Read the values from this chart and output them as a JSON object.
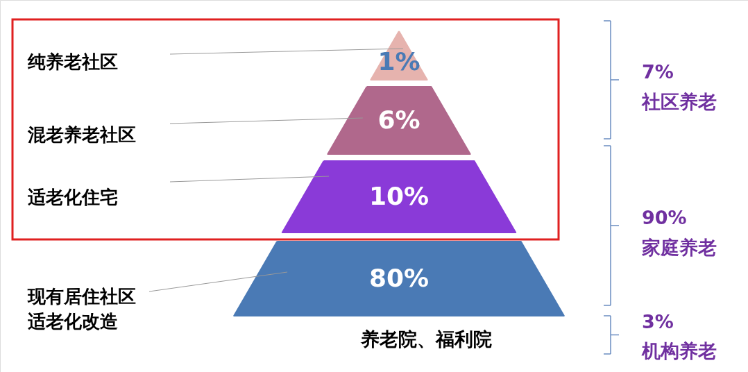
{
  "chart_data": {
    "type": "other",
    "categories": [
      "纯养老社区",
      "混老养老社区",
      "适老化住宅",
      "现有居住社区适老化改造"
    ],
    "values": [
      1,
      6,
      10,
      80
    ],
    "value_labels": [
      "1%",
      "6%",
      "10%",
      "80%"
    ],
    "colors": [
      "#e6b3ae",
      "#b0688c",
      "#8a3ad8",
      "#4a7ab5"
    ],
    "annotations": [
      "7%",
      "社区养老",
      "90%",
      "家庭养老",
      "3%",
      "机构养老",
      "养老院、福利院"
    ]
  }
}
